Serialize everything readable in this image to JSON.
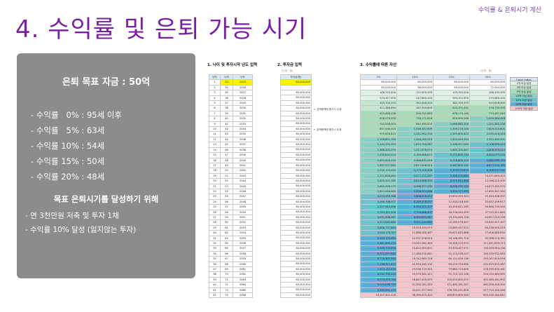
{
  "slide": {
    "tag": "수익률 & 은퇴시기 계산",
    "title": "4. 수익률 및 은퇴 가능 시기"
  },
  "panel": {
    "heading": "은퇴 목표 자금 : 50억",
    "rates": [
      "- 수익률   0% : 95세 이후",
      "- 수익률   5% : 63세",
      "- 수익률 10% : 54세",
      "- 수익률 15% : 50세",
      "- 수익률 20% : 48세"
    ],
    "goal_heading": "목표 은퇴시기를 달성하기 위해",
    "goal_items": [
      "- 연 3천만원 저축 및 투자 1채",
      "- 수익률 10% 달성 (잃지않는 투자)"
    ]
  },
  "sheet": {
    "sec1": "1. 나이 및 투자시작 년도 입력",
    "sec2": "2. 투자금 입력",
    "sec3": "3. 수익률에 따른 자산",
    "input_note": "(단위 : 원)",
    "result_note": "(단위 : 원)",
    "note_rows": [
      "← 금액증액에 증가시 수정",
      "← 금액증액에 증가시 수정"
    ],
    "left_headers": [
      "년차",
      "나이",
      "년도"
    ],
    "input_header": "투자금(원)",
    "result_headers": [
      "5%",
      "10%",
      "15%",
      "20%"
    ],
    "rows": [
      {
        "n": "1",
        "age": "33",
        "year": "2025",
        "inv": "60,000,000",
        "r": [
          "60,000,000",
          "60,000,000",
          "60,000,000",
          "60,000,000"
        ]
      },
      {
        "n": "2",
        "age": "34",
        "year": "2026",
        "inv": "",
        "r": [
          "63,000,000",
          "66,000,000",
          "69,000,000",
          "72,000,000"
        ]
      },
      {
        "n": "3",
        "age": "35",
        "year": "2027",
        "inv": "80,000,000",
        "r": [
          "146,150,000",
          "152,600,000",
          "159,350,000",
          "166,400,000"
        ]
      },
      {
        "n": "4",
        "age": "36",
        "year": "2028",
        "inv": "80,000,000",
        "r": [
          "233,457,500",
          "247,860,000",
          "263,252,500",
          "279,680,000"
        ]
      },
      {
        "n": "5",
        "age": "37",
        "age2": "",
        "year": "2029",
        "inv": "80,000,000",
        "r": [
          "325,130,375",
          "352,646,000",
          "382,740,375",
          "415,616,000"
        ]
      },
      {
        "n": "6",
        "age": "38",
        "year": "2030",
        "inv": "80,000,000",
        "r": [
          "421,386,894",
          "467,910,600",
          "520,151,431",
          "578,739,200"
        ]
      },
      {
        "n": "7",
        "age": "39",
        "year": "2031",
        "inv": "80,000,000",
        "r": [
          "522,456,238",
          "594,701,660",
          "678,174,146",
          "774,487,040"
        ]
      },
      {
        "n": "8",
        "age": "40",
        "year": "2032",
        "inv": "80,000,000",
        "r": [
          "628,579,050",
          "734,171,826",
          "859,900,268",
          "1,009,384,448"
        ]
      },
      {
        "n": "9",
        "age": "41",
        "year": "2033",
        "inv": "80,000,000",
        "r": [
          "740,008,003",
          "887,589,009",
          "1,068,885,308",
          "1,291,261,338"
        ]
      },
      {
        "n": "10",
        "age": "42",
        "year": "2034",
        "inv": "80,000,000",
        "r": [
          "857,008,403",
          "1,056,347,909",
          "1,309,218,104",
          "1,629,513,605"
        ]
      },
      {
        "n": "11",
        "age": "43",
        "year": "2035",
        "inv": "80,000,000",
        "r": [
          "979,858,823",
          "1,241,982,700",
          "1,585,600,820",
          "2,035,416,326"
        ]
      },
      {
        "n": "12",
        "age": "44",
        "year": "2036",
        "inv": "80,000,000",
        "r": [
          "1,108,851,764",
          "1,446,180,970",
          "1,903,440,943",
          "2,522,499,591"
        ]
      },
      {
        "n": "13",
        "age": "45",
        "year": "2037",
        "inv": "80,000,000",
        "r": [
          "1,244,294,353",
          "1,670,799,067",
          "2,268,957,084",
          "3,106,999,510"
        ]
      },
      {
        "n": "14",
        "age": "46",
        "year": "2038",
        "inv": "80,000,000",
        "r": [
          "1,386,509,070",
          "1,917,878,974",
          "2,689,300,647",
          "3,808,399,412"
        ]
      },
      {
        "n": "15",
        "age": "47",
        "year": "2039",
        "inv": "80,000,000",
        "r": [
          "1,535,834,524",
          "2,189,666,872",
          "3,172,695,744",
          "4,650,079,294"
        ]
      },
      {
        "n": "16",
        "age": "48",
        "year": "2040",
        "inv": "80,000,000",
        "r": [
          "1,692,626,250",
          "2,488,633,559",
          "3,728,600,105",
          "5,660,095,153"
        ]
      },
      {
        "n": "17",
        "age": "49",
        "year": "2041",
        "inv": "80,000,000",
        "r": [
          "1,857,257,562",
          "2,817,496,915",
          "4,367,890,121",
          "6,872,114,183"
        ]
      },
      {
        "n": "18",
        "age": "50",
        "year": "2042",
        "inv": "80,000,000",
        "r": [
          "2,030,120,440",
          "3,179,246,606",
          "5,103,073,639",
          "8,326,537,020"
        ]
      },
      {
        "n": "19",
        "age": "51",
        "year": "2043",
        "inv": "80,000,000",
        "r": [
          "2,211,626,462",
          "3,577,171,267",
          "5,948,534,685",
          "10,071,844,424"
        ]
      },
      {
        "n": "20",
        "age": "52",
        "year": "2044",
        "inv": "80,000,000",
        "r": [
          "2,402,207,785",
          "4,014,888,393",
          "6,920,814,888",
          "12,166,213,309"
        ]
      },
      {
        "n": "21",
        "age": "53",
        "year": "2045",
        "inv": "80,000,000",
        "r": [
          "2,602,318,175",
          "4,496,377,233",
          "8,038,937,121",
          "14,679,455,970"
        ]
      },
      {
        "n": "22",
        "age": "54",
        "year": "2046",
        "inv": "80,000,000",
        "r": [
          "2,812,434,084",
          "5,026,014,956",
          "9,324,777,690",
          "17,695,347,164"
        ]
      },
      {
        "n": "23",
        "age": "55",
        "year": "2047",
        "inv": "80,000,000",
        "r": [
          "3,033,055,788",
          "5,608,616,452",
          "10,803,494,343",
          "21,314,416,597"
        ]
      },
      {
        "n": "24",
        "age": "56",
        "year": "2048",
        "inv": "80,000,000",
        "r": [
          "3,264,708,577",
          "6,249,478,097",
          "12,504,018,495",
          "25,657,299,917"
        ]
      },
      {
        "n": "25",
        "age": "57",
        "year": "2049",
        "inv": "80,000,000",
        "r": [
          "3,507,944,006",
          "6,954,425,907",
          "14,459,621,269",
          "30,868,759,900"
        ]
      },
      {
        "n": "26",
        "age": "58",
        "year": "2050",
        "inv": "80,000,000",
        "r": [
          "3,763,341,206",
          "7,729,868,497",
          "16,708,564,459",
          "37,122,511,880"
        ]
      },
      {
        "n": "27",
        "age": "59",
        "year": "2051",
        "inv": "80,000,000",
        "r": [
          "4,031,508,267",
          "8,582,855,347",
          "19,294,849,128",
          "44,627,014,256"
        ]
      },
      {
        "n": "28",
        "age": "60",
        "year": "2052",
        "inv": "80,000,000",
        "r": [
          "4,313,083,680",
          "9,521,140,882",
          "22,269,076,497",
          "53,632,417,107"
        ]
      },
      {
        "n": "29",
        "age": "61",
        "year": "2053",
        "inv": "80,000,000",
        "r": [
          "4,608,737,864",
          "10,553,254,970",
          "25,689,437,972",
          "64,438,900,529"
        ]
      },
      {
        "n": "30",
        "age": "62",
        "year": "2054",
        "inv": "80,000,000",
        "r": [
          "4,919,174,757",
          "11,688,580,467",
          "29,622,853,668",
          "77,406,680,634"
        ]
      },
      {
        "n": "31",
        "age": "63",
        "year": "2055",
        "inv": "80,000,000",
        "r": [
          "5,245,133,495",
          "12,937,438,514",
          "34,146,281,718",
          "92,968,016,761"
        ]
      },
      {
        "n": "32",
        "age": "64",
        "year": "2056",
        "inv": "80,000,000",
        "r": [
          "5,587,390,170",
          "14,311,182,365",
          "39,348,223,975",
          "111,641,620,113"
        ]
      },
      {
        "n": "33",
        "age": "65",
        "year": "2057",
        "inv": "80,000,000",
        "r": [
          "5,946,759,678",
          "15,822,300,601",
          "45,330,457,571",
          "134,049,944,136"
        ]
      },
      {
        "n": "34",
        "age": "66",
        "year": "2058",
        "inv": "80,000,000",
        "r": [
          "6,324,097,662",
          "17,484,530,661",
          "52,210,026,207",
          "160,939,932,963"
        ]
      },
      {
        "n": "35",
        "age": "67",
        "year": "2059",
        "inv": "80,000,000",
        "r": [
          "6,720,302,545",
          "19,312,983,728",
          "60,121,530,138",
          "193,207,919,556"
        ]
      },
      {
        "n": "36",
        "age": "68",
        "year": "2060",
        "inv": "80,000,000",
        "r": [
          "7,136,317,672",
          "21,324,282,100",
          "69,219,759,658",
          "231,929,503,467"
        ]
      },
      {
        "n": "37",
        "age": "69",
        "year": "2061",
        "inv": "80,000,000",
        "r": [
          "7,573,133,556",
          "23,536,710,310",
          "79,682,723,606",
          "278,395,404,161"
        ]
      },
      {
        "n": "38",
        "age": "70",
        "year": "2062",
        "inv": "80,000,000",
        "r": [
          "8,031,790,234",
          "25,970,381,341",
          "91,715,132,146",
          "334,154,484,993"
        ]
      },
      {
        "n": "39",
        "age": "71",
        "year": "2063",
        "inv": "80,000,000",
        "r": [
          "8,513,379,746",
          "28,647,419,475",
          "105,552,401,972",
          "401,065,381,992"
        ]
      },
      {
        "n": "40",
        "age": "72",
        "year": "2064",
        "inv": "80,000,000",
        "r": [
          "9,019,048,733",
          "31,592,161,423",
          "121,465,262,267",
          "481,358,458,390"
        ]
      },
      {
        "n": "41",
        "age": "73",
        "year": "2065",
        "inv": "80,000,000",
        "r": [
          "9,550,001,170",
          "34,831,377,565",
          "139,765,051,608",
          "577,710,150,068"
        ]
      },
      {
        "n": "42",
        "age": "74",
        "year": "2066",
        "inv": "80,000,000",
        "r": [
          "10,107,501,228",
          "38,394,515,322",
          "160,809,809,349",
          "693,332,180,081"
        ]
      }
    ],
    "legend": {
      "title": "Color Index",
      "items": [
        {
          "label": "1억 이상 달성",
          "color": "#dff2e6"
        },
        {
          "label": "3억 이상 달성",
          "color": "#c3e8cf"
        },
        {
          "label": "5억 이상 달성",
          "color": "#a6dcb8"
        },
        {
          "label": "10억 이상 달성",
          "color": "#8bd0c5"
        },
        {
          "label": "30억 이상 달성",
          "color": "#6fc2cd"
        },
        {
          "label": "50억 이상 달성",
          "color": "#5ab0d6"
        },
        {
          "label": "100억 이상 달성",
          "color": "#f4c6c9"
        }
      ]
    }
  }
}
